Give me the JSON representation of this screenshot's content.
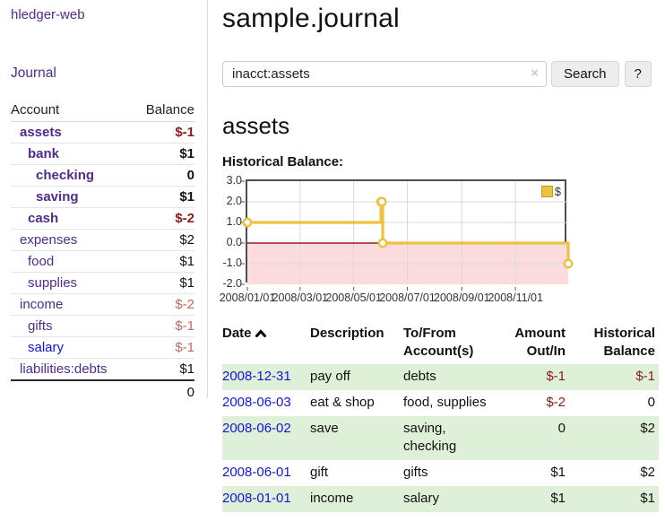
{
  "sidebar": {
    "brand": "hledger-web",
    "nav": {
      "journal": "Journal"
    },
    "table": {
      "headers": {
        "account": "Account",
        "balance": "Balance"
      },
      "accounts": [
        {
          "name": "assets",
          "balance": "$-1"
        },
        {
          "name": "bank",
          "balance": "$1"
        },
        {
          "name": "checking",
          "balance": "0"
        },
        {
          "name": "saving",
          "balance": "$1"
        },
        {
          "name": "cash",
          "balance": "$-2"
        },
        {
          "name": "expenses",
          "balance": "$2"
        },
        {
          "name": "food",
          "balance": "$1"
        },
        {
          "name": "supplies",
          "balance": "$1"
        },
        {
          "name": "income",
          "balance": "$-2"
        },
        {
          "name": "gifts",
          "balance": "$-1"
        },
        {
          "name": "salary",
          "balance": "$-1"
        },
        {
          "name": "liabilities:debts",
          "balance": "$1"
        }
      ],
      "total": "0"
    }
  },
  "main": {
    "title": "sample.journal",
    "search": {
      "value": "inacct:assets",
      "clear": "×",
      "search_button": "Search",
      "help_button": "?"
    },
    "heading": "assets",
    "chart_title": "Historical Balance:"
  },
  "colors": {
    "link_purple": "#4f2c8c",
    "link_blue": "#1414d6",
    "negative_strong": "#8c1a1a",
    "negative_soft": "#c06868",
    "row_green": "#dff0d8"
  },
  "chart_data": {
    "type": "line",
    "title": "Historical Balance",
    "steps": true,
    "series": [
      {
        "name": "$",
        "color": "#edc240",
        "points": [
          {
            "date": "2008-01-01",
            "day": 0,
            "value": 1
          },
          {
            "date": "2008-06-01",
            "day": 152,
            "value": 2
          },
          {
            "date": "2008-06-02",
            "day": 153,
            "value": 2
          },
          {
            "date": "2008-06-03",
            "day": 154,
            "value": 0
          },
          {
            "date": "2008-12-31",
            "day": 365,
            "value": -1
          }
        ]
      }
    ],
    "x_ticks": [
      {
        "day": 0,
        "label": "2008/01/01"
      },
      {
        "day": 60,
        "label": "2008/03/01"
      },
      {
        "day": 121,
        "label": "2008/05/01"
      },
      {
        "day": 182,
        "label": "2008/07/01"
      },
      {
        "day": 244,
        "label": "2008/09/01"
      },
      {
        "day": 305,
        "label": "2008/11/01"
      }
    ],
    "x_range_days": [
      0,
      365
    ],
    "y_ticks": [
      "3.0",
      "2.0",
      "1.0",
      "0.0",
      "-1.0",
      "-2.0"
    ],
    "ylim": [
      -2,
      3
    ],
    "grid": true,
    "negative_region_fill": "#fbdbdb",
    "zero_line_color": "#9c1c1c",
    "legend": {
      "label": "$",
      "position": "top-right"
    }
  },
  "register": {
    "headers": [
      {
        "l1": "Date",
        "l2": ""
      },
      {
        "l1": "Description",
        "l2": ""
      },
      {
        "l1": "To/From",
        "l2": "Account(s)"
      },
      {
        "l1": "Amount",
        "l2": "Out/In"
      },
      {
        "l1": "Historical",
        "l2": "Balance"
      }
    ],
    "rows": [
      {
        "date": "2008-12-31",
        "description": "pay off",
        "accounts": "debts",
        "amount": "$-1",
        "balance": "$-1"
      },
      {
        "date": "2008-06-03",
        "description": "eat & shop",
        "accounts": "food, supplies",
        "amount": "$-2",
        "balance": "0"
      },
      {
        "date": "2008-06-02",
        "description": "save",
        "accounts": "saving, checking",
        "amount": "0",
        "balance": "$2"
      },
      {
        "date": "2008-06-01",
        "description": "gift",
        "accounts": "gifts",
        "amount": "$1",
        "balance": "$2"
      },
      {
        "date": "2008-01-01",
        "description": "income",
        "accounts": "salary",
        "amount": "$1",
        "balance": "$1"
      }
    ]
  }
}
